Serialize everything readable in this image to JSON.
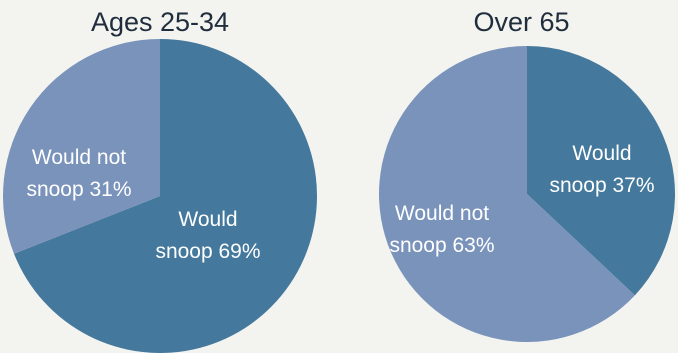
{
  "chart_data": [
    {
      "type": "pie",
      "title": "Ages 25-34",
      "slices": [
        {
          "label_line1": "Would",
          "label_line2": "snoop 69%",
          "value": 69,
          "color": "#44789c"
        },
        {
          "label_line1": "Would not",
          "label_line2": "snoop 31%",
          "value": 31,
          "color": "#7a93bb"
        }
      ]
    },
    {
      "type": "pie",
      "title": "Over 65",
      "slices": [
        {
          "label_line1": "Would",
          "label_line2": "snoop 37%",
          "value": 37,
          "color": "#44789c"
        },
        {
          "label_line1": "Would not",
          "label_line2": "snoop 63%",
          "value": 63,
          "color": "#7a93bb"
        }
      ]
    }
  ]
}
